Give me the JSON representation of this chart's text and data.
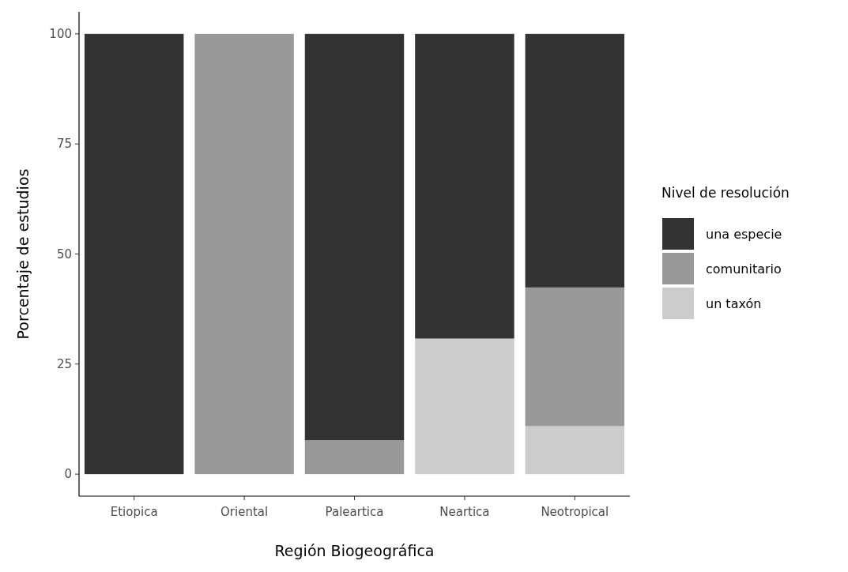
{
  "chart_data": {
    "type": "bar",
    "stacked": true,
    "xlabel": "Región Biogeográfica",
    "ylabel": "Porcentaje de estudios",
    "legend_title": "Nivel de resolución",
    "legend": "right",
    "categories": [
      "Etiopica",
      "Oriental",
      "Paleartica",
      "Neartica",
      "Neotropical"
    ],
    "series": [
      {
        "name": "un taxón",
        "color": "#cccccc",
        "values": [
          0,
          0,
          0,
          30.8,
          10.9
        ]
      },
      {
        "name": "comunitario",
        "color": "#999999",
        "values": [
          0,
          100,
          7.7,
          0,
          31.5
        ]
      },
      {
        "name": "una especie",
        "color": "#333333",
        "values": [
          100,
          0,
          92.3,
          69.2,
          57.6
        ]
      }
    ],
    "ylim": [
      -5,
      105
    ],
    "yticks": [
      0,
      25,
      50,
      75,
      100
    ],
    "grid": false
  }
}
